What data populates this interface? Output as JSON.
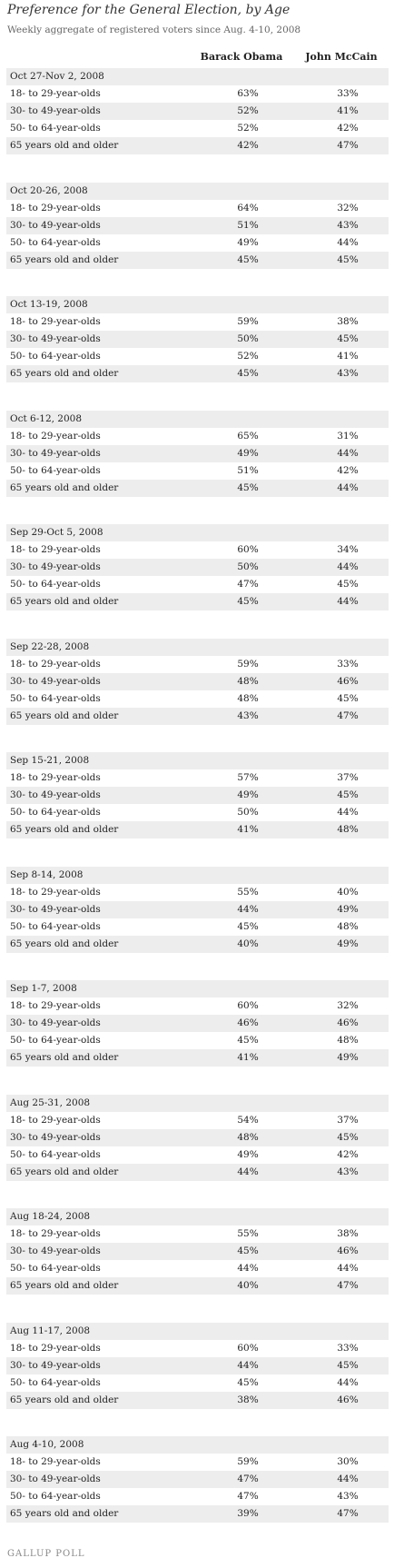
{
  "title": "Preference for the General Election, by Age",
  "subtitle": "Weekly aggregate of registered voters since Aug. 4-10, 2008",
  "footer": "GALLUP POLL",
  "colors": {
    "shade": "#ededed",
    "text": "#222222",
    "muted": "#666666"
  },
  "chart_data": {
    "type": "table",
    "title": "Preference for the General Election, by Age",
    "subtitle": "Weekly aggregate of registered voters since Aug. 4-10, 2008",
    "columns": [
      "Barack Obama",
      "John McCain"
    ],
    "groups": [
      {
        "period": "Oct 27-Nov 2, 2008",
        "rows": [
          {
            "label": "18- to 29-year-olds",
            "obama": "63%",
            "mccain": "33%"
          },
          {
            "label": "30- to 49-year-olds",
            "obama": "52%",
            "mccain": "41%"
          },
          {
            "label": "50- to 64-year-olds",
            "obama": "52%",
            "mccain": "42%"
          },
          {
            "label": "65 years old and older",
            "obama": "42%",
            "mccain": "47%"
          }
        ]
      },
      {
        "period": "Oct 20-26, 2008",
        "rows": [
          {
            "label": "18- to 29-year-olds",
            "obama": "64%",
            "mccain": "32%"
          },
          {
            "label": "30- to 49-year-olds",
            "obama": "51%",
            "mccain": "43%"
          },
          {
            "label": "50- to 64-year-olds",
            "obama": "49%",
            "mccain": "44%"
          },
          {
            "label": "65 years old and older",
            "obama": "45%",
            "mccain": "45%"
          }
        ]
      },
      {
        "period": "Oct 13-19, 2008",
        "rows": [
          {
            "label": "18- to 29-year-olds",
            "obama": "59%",
            "mccain": "38%"
          },
          {
            "label": "30- to 49-year-olds",
            "obama": "50%",
            "mccain": "45%"
          },
          {
            "label": "50- to 64-year-olds",
            "obama": "52%",
            "mccain": "41%"
          },
          {
            "label": "65 years old and older",
            "obama": "45%",
            "mccain": "43%"
          }
        ]
      },
      {
        "period": "Oct 6-12, 2008",
        "rows": [
          {
            "label": "18- to 29-year-olds",
            "obama": "65%",
            "mccain": "31%"
          },
          {
            "label": "30- to 49-year-olds",
            "obama": "49%",
            "mccain": "44%"
          },
          {
            "label": "50- to 64-year-olds",
            "obama": "51%",
            "mccain": "42%"
          },
          {
            "label": "65 years old and older",
            "obama": "45%",
            "mccain": "44%"
          }
        ]
      },
      {
        "period": "Sep 29-Oct 5, 2008",
        "rows": [
          {
            "label": "18- to 29-year-olds",
            "obama": "60%",
            "mccain": "34%"
          },
          {
            "label": "30- to 49-year-olds",
            "obama": "50%",
            "mccain": "44%"
          },
          {
            "label": "50- to 64-year-olds",
            "obama": "47%",
            "mccain": "45%"
          },
          {
            "label": "65 years old and older",
            "obama": "45%",
            "mccain": "44%"
          }
        ]
      },
      {
        "period": "Sep 22-28, 2008",
        "rows": [
          {
            "label": "18- to 29-year-olds",
            "obama": "59%",
            "mccain": "33%"
          },
          {
            "label": "30- to 49-year-olds",
            "obama": "48%",
            "mccain": "46%"
          },
          {
            "label": "50- to 64-year-olds",
            "obama": "48%",
            "mccain": "45%"
          },
          {
            "label": "65 years old and older",
            "obama": "43%",
            "mccain": "47%"
          }
        ]
      },
      {
        "period": "Sep 15-21, 2008",
        "rows": [
          {
            "label": "18- to 29-year-olds",
            "obama": "57%",
            "mccain": "37%"
          },
          {
            "label": "30- to 49-year-olds",
            "obama": "49%",
            "mccain": "45%"
          },
          {
            "label": "50- to 64-year-olds",
            "obama": "50%",
            "mccain": "44%"
          },
          {
            "label": "65 years old and older",
            "obama": "41%",
            "mccain": "48%"
          }
        ]
      },
      {
        "period": "Sep 8-14, 2008",
        "rows": [
          {
            "label": "18- to 29-year-olds",
            "obama": "55%",
            "mccain": "40%"
          },
          {
            "label": "30- to 49-year-olds",
            "obama": "44%",
            "mccain": "49%"
          },
          {
            "label": "50- to 64-year-olds",
            "obama": "45%",
            "mccain": "48%"
          },
          {
            "label": "65 years old and older",
            "obama": "40%",
            "mccain": "49%"
          }
        ]
      },
      {
        "period": "Sep 1-7, 2008",
        "rows": [
          {
            "label": "18- to 29-year-olds",
            "obama": "60%",
            "mccain": "32%"
          },
          {
            "label": "30- to 49-year-olds",
            "obama": "46%",
            "mccain": "46%"
          },
          {
            "label": "50- to 64-year-olds",
            "obama": "45%",
            "mccain": "48%"
          },
          {
            "label": "65 years old and older",
            "obama": "41%",
            "mccain": "49%"
          }
        ]
      },
      {
        "period": "Aug 25-31, 2008",
        "rows": [
          {
            "label": "18- to 29-year-olds",
            "obama": "54%",
            "mccain": "37%"
          },
          {
            "label": "30- to 49-year-olds",
            "obama": "48%",
            "mccain": "45%"
          },
          {
            "label": "50- to 64-year-olds",
            "obama": "49%",
            "mccain": "42%"
          },
          {
            "label": "65 years old and older",
            "obama": "44%",
            "mccain": "43%"
          }
        ]
      },
      {
        "period": "Aug 18-24, 2008",
        "rows": [
          {
            "label": "18- to 29-year-olds",
            "obama": "55%",
            "mccain": "38%"
          },
          {
            "label": "30- to 49-year-olds",
            "obama": "45%",
            "mccain": "46%"
          },
          {
            "label": "50- to 64-year-olds",
            "obama": "44%",
            "mccain": "44%"
          },
          {
            "label": "65 years old and older",
            "obama": "40%",
            "mccain": "47%"
          }
        ]
      },
      {
        "period": "Aug 11-17, 2008",
        "rows": [
          {
            "label": "18- to 29-year-olds",
            "obama": "60%",
            "mccain": "33%"
          },
          {
            "label": "30- to 49-year-olds",
            "obama": "44%",
            "mccain": "45%"
          },
          {
            "label": "50- to 64-year-olds",
            "obama": "45%",
            "mccain": "44%"
          },
          {
            "label": "65 years old and older",
            "obama": "38%",
            "mccain": "46%"
          }
        ]
      },
      {
        "period": "Aug 4-10, 2008",
        "rows": [
          {
            "label": "18- to 29-year-olds",
            "obama": "59%",
            "mccain": "30%"
          },
          {
            "label": "30- to 49-year-olds",
            "obama": "47%",
            "mccain": "44%"
          },
          {
            "label": "50- to 64-year-olds",
            "obama": "47%",
            "mccain": "43%"
          },
          {
            "label": "65 years old and older",
            "obama": "39%",
            "mccain": "47%"
          }
        ]
      }
    ]
  }
}
